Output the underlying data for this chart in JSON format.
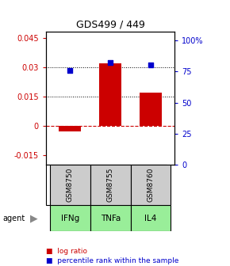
{
  "title": "GDS499 / 449",
  "samples": [
    "GSM8750",
    "GSM8755",
    "GSM8760"
  ],
  "agents": [
    "IFNg",
    "TNFa",
    "IL4"
  ],
  "log_ratios": [
    -0.003,
    0.032,
    0.017
  ],
  "percentile_ranks": [
    0.76,
    0.82,
    0.8
  ],
  "bar_color": "#cc0000",
  "dot_color": "#0000cc",
  "ylim_left": [
    -0.02,
    0.048
  ],
  "ylim_right": [
    0.0,
    1.0667
  ],
  "yticks_left": [
    -0.015,
    0,
    0.015,
    0.03,
    0.045
  ],
  "ytick_labels_left": [
    "-0.015",
    "0",
    "0.015",
    "0.03",
    "0.045"
  ],
  "yticks_right": [
    0.0,
    0.25,
    0.5,
    0.75,
    1.0
  ],
  "ytick_labels_right": [
    "0",
    "25",
    "50",
    "75",
    "100%"
  ],
  "hline_positions": [
    0.015,
    0.03
  ],
  "hline_zero_color": "#cc0000",
  "hline_zero_style": "--",
  "hline_grid_style": ":",
  "agent_color": "#99ee99",
  "sample_bg_color": "#cccccc",
  "legend_log_ratio": "log ratio",
  "legend_percentile": "percentile rank within the sample"
}
